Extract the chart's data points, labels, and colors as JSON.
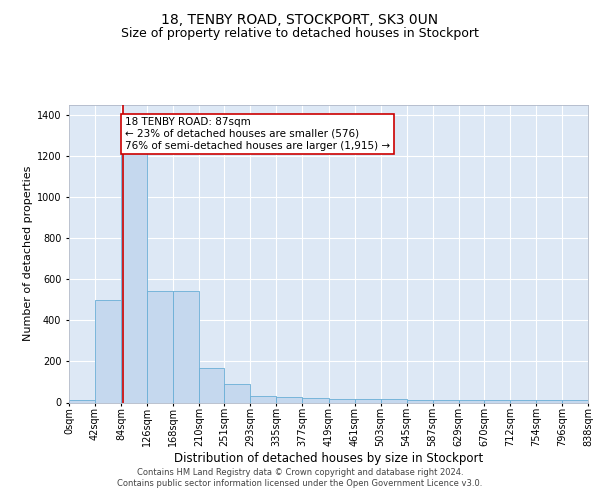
{
  "title": "18, TENBY ROAD, STOCKPORT, SK3 0UN",
  "subtitle": "Size of property relative to detached houses in Stockport",
  "xlabel": "Distribution of detached houses by size in Stockport",
  "ylabel": "Number of detached properties",
  "bin_edges": [
    0,
    42,
    84,
    126,
    168,
    210,
    251,
    293,
    335,
    377,
    419,
    461,
    503,
    545,
    587,
    629,
    670,
    712,
    754,
    796,
    838
  ],
  "bin_labels": [
    "0sqm",
    "42sqm",
    "84sqm",
    "126sqm",
    "168sqm",
    "210sqm",
    "251sqm",
    "293sqm",
    "335sqm",
    "377sqm",
    "419sqm",
    "461sqm",
    "503sqm",
    "545sqm",
    "587sqm",
    "629sqm",
    "670sqm",
    "712sqm",
    "754sqm",
    "796sqm",
    "838sqm"
  ],
  "bar_heights": [
    10,
    500,
    1370,
    545,
    545,
    170,
    90,
    30,
    25,
    20,
    15,
    15,
    15,
    10,
    10,
    10,
    10,
    10,
    10,
    10
  ],
  "bar_color": "#c5d8ee",
  "bar_edge_color": "#6aaed6",
  "red_line_x": 87,
  "red_line_color": "#cc0000",
  "annotation_text": "18 TENBY ROAD: 87sqm\n← 23% of detached houses are smaller (576)\n76% of semi-detached houses are larger (1,915) →",
  "annotation_box_color": "#ffffff",
  "annotation_box_edge_color": "#cc0000",
  "ylim": [
    0,
    1450
  ],
  "xlim": [
    0,
    838
  ],
  "background_color": "#dde8f5",
  "grid_color": "#ffffff",
  "footer_text": "Contains HM Land Registry data © Crown copyright and database right 2024.\nContains public sector information licensed under the Open Government Licence v3.0.",
  "title_fontsize": 10,
  "subtitle_fontsize": 9,
  "ylabel_fontsize": 8,
  "xlabel_fontsize": 8.5,
  "tick_fontsize": 7,
  "annotation_fontsize": 7.5,
  "footer_fontsize": 6,
  "yticks": [
    0,
    200,
    400,
    600,
    800,
    1000,
    1200,
    1400
  ]
}
